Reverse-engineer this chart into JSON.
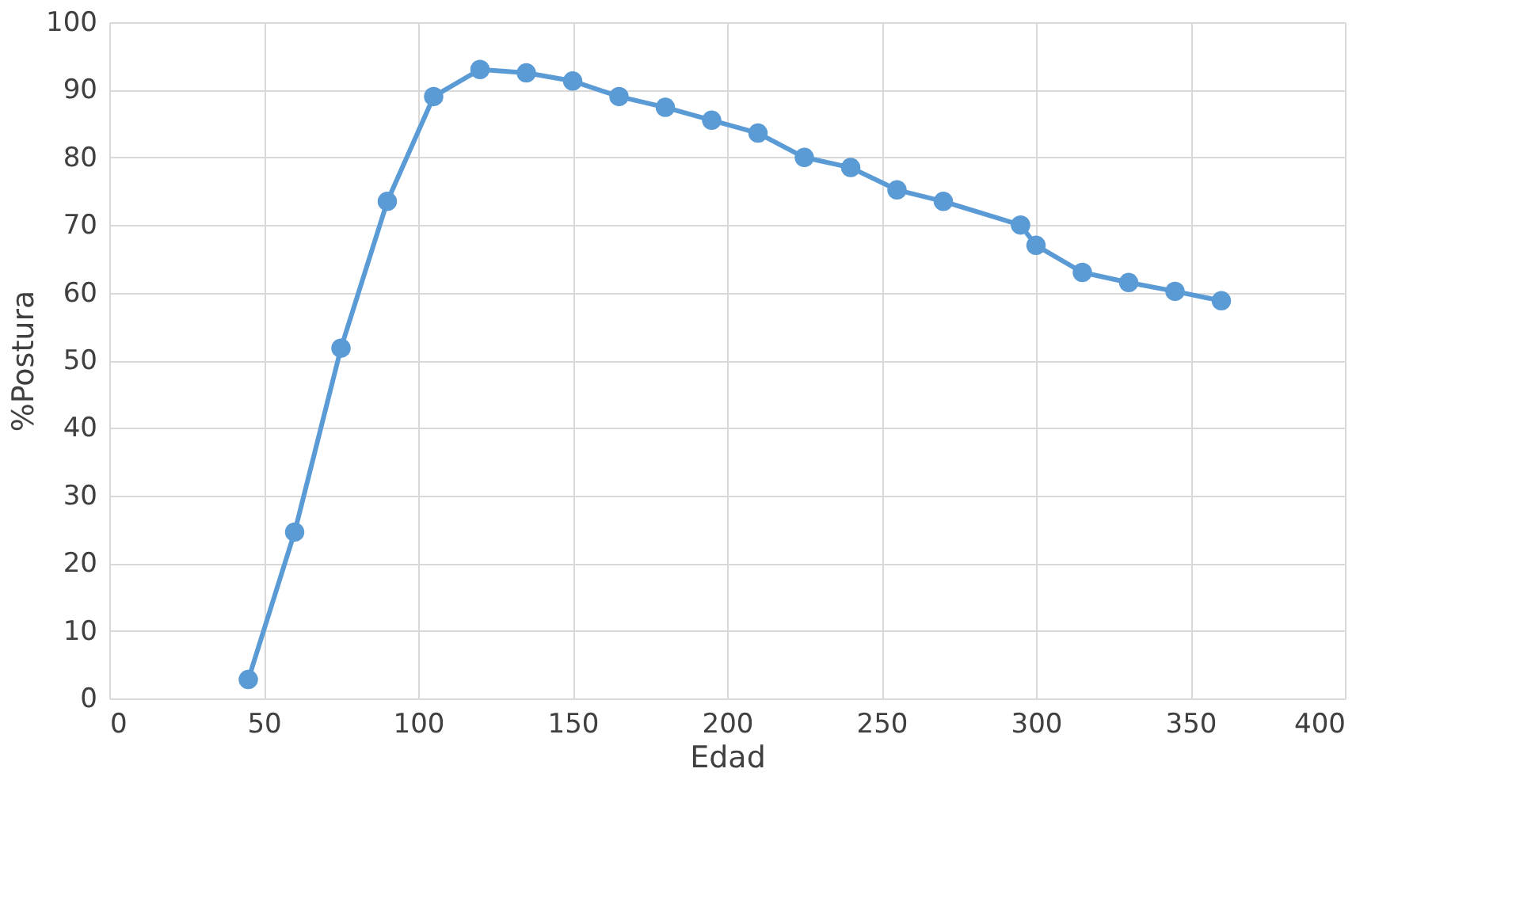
{
  "chart_data": {
    "type": "line",
    "xlabel": "Edad",
    "ylabel": "%Postura",
    "x": [
      45,
      60,
      75,
      90,
      105,
      120,
      135,
      150,
      165,
      180,
      195,
      210,
      225,
      240,
      255,
      270,
      295,
      300,
      315,
      330,
      345,
      360
    ],
    "series": [
      {
        "color": "#5b9bd5",
        "values": [
          2.8,
          24.6,
          51.8,
          73.5,
          89,
          93,
          92.5,
          91.3,
          89,
          87.4,
          85.5,
          83.6,
          80,
          78.5,
          75.2,
          73.5,
          70,
          67,
          63,
          61.5,
          60.2,
          58.8
        ]
      }
    ],
    "xlim": [
      0,
      400
    ],
    "xticks": [
      0,
      50,
      100,
      150,
      200,
      250,
      300,
      350,
      400
    ],
    "ylim": [
      0,
      100
    ],
    "yticks": [
      0,
      10,
      20,
      30,
      40,
      50,
      60,
      70,
      80,
      90,
      100
    ],
    "grid": true,
    "marker": "circle",
    "line_style": "solid"
  }
}
